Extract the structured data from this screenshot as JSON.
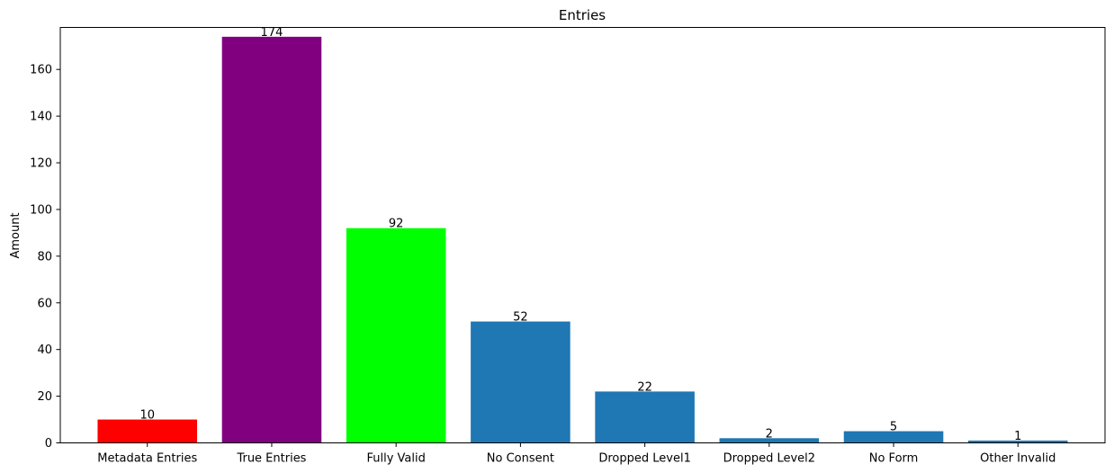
{
  "chart_data": {
    "type": "bar",
    "title": "Entries",
    "xlabel": "",
    "ylabel": "Amount",
    "categories": [
      "Metadata Entries",
      "True Entries",
      "Fully Valid",
      "No Consent",
      "Dropped Level1",
      "Dropped Level2",
      "No Form",
      "Other Invalid"
    ],
    "values": [
      10,
      174,
      92,
      52,
      22,
      2,
      5,
      1
    ],
    "colors": [
      "#ff0000",
      "#800080",
      "#00ff00",
      "#1f77b4",
      "#1f77b4",
      "#1f77b4",
      "#1f77b4",
      "#1f77b4"
    ],
    "ylim": [
      0,
      178
    ],
    "yticks": [
      0,
      20,
      40,
      60,
      80,
      100,
      120,
      140,
      160
    ],
    "grid": false,
    "legend": "none",
    "data_labels": true
  }
}
